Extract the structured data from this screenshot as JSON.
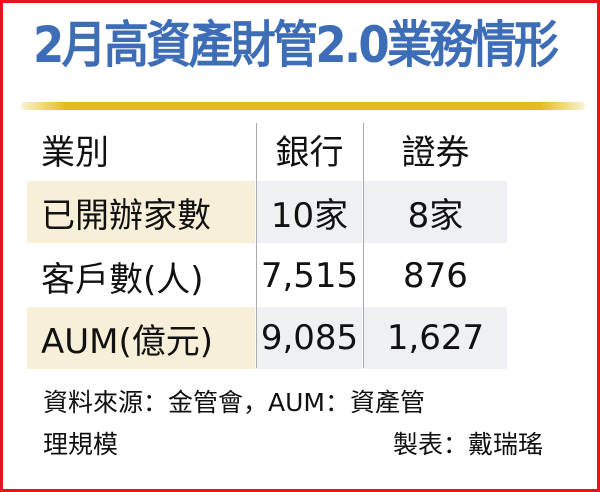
{
  "title": "2月高資產財管2.0業務情形",
  "chart_data": {
    "type": "table",
    "title": "2月高資產財管2.0業務情形",
    "columns": [
      "業別",
      "銀行",
      "證券"
    ],
    "rows": [
      [
        "已開辦家數",
        "10家",
        "8家"
      ],
      [
        "客戶數(人)",
        "7,515",
        "876"
      ],
      [
        "AUM(億元)",
        "9,085",
        "1,627"
      ]
    ]
  },
  "footer": {
    "source_line1": "資料來源：金管會，AUM：資產管",
    "source_line2": "理規模",
    "credit": "製表：戴瑞瑤"
  },
  "colors": {
    "title": "#3d6db6",
    "border": "#e8141b",
    "rule": "#e6bc1c",
    "label_shade": "#f8efd9",
    "value_shade": "#eef0f4"
  }
}
